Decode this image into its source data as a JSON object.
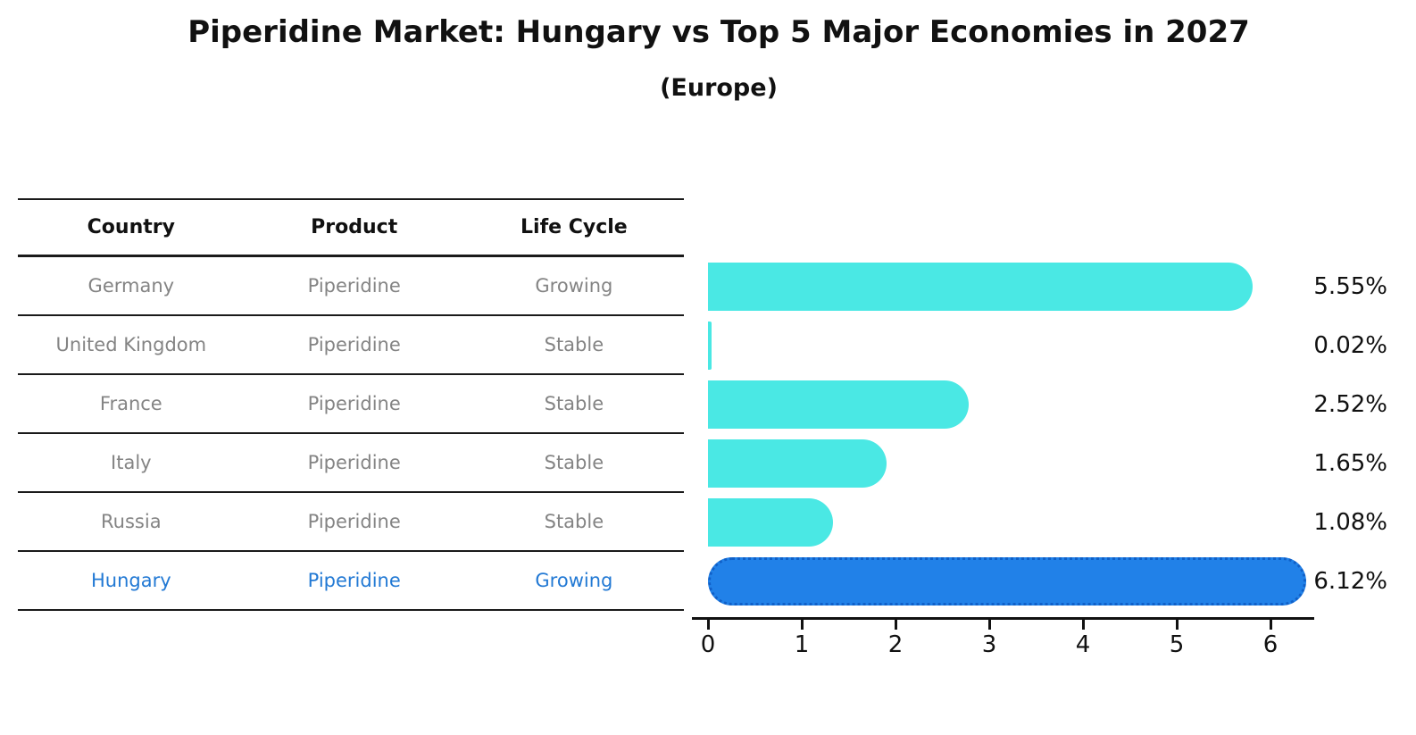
{
  "title": "Piperidine Market: Hungary vs Top 5 Major Economies in 2027",
  "subtitle": "(Europe)",
  "table": {
    "headers": [
      "Country",
      "Product",
      "Life Cycle"
    ],
    "rows": [
      {
        "country": "Germany",
        "product": "Piperidine",
        "life_cycle": "Growing",
        "highlight": false
      },
      {
        "country": "United Kingdom",
        "product": "Piperidine",
        "life_cycle": "Stable",
        "highlight": false
      },
      {
        "country": "France",
        "product": "Piperidine",
        "life_cycle": "Stable",
        "highlight": false
      },
      {
        "country": "Italy",
        "product": "Piperidine",
        "life_cycle": "Stable",
        "highlight": false
      },
      {
        "country": "Russia",
        "product": "Piperidine",
        "life_cycle": "Stable",
        "highlight": false
      },
      {
        "country": "Hungary",
        "product": "Piperidine",
        "life_cycle": "Growing",
        "highlight": true
      }
    ]
  },
  "chart_data": {
    "type": "bar",
    "orientation": "horizontal",
    "title": "Piperidine Market: Hungary vs Top 5 Major Economies in 2027 (Europe)",
    "categories": [
      "Germany",
      "United Kingdom",
      "France",
      "Italy",
      "Russia",
      "Hungary"
    ],
    "values": [
      5.55,
      0.02,
      2.52,
      1.65,
      1.08,
      6.12
    ],
    "value_labels": [
      "5.55%",
      "0.02%",
      "2.52%",
      "1.65%",
      "1.08%",
      "6.12%"
    ],
    "unit": "%",
    "highlight_index": 5,
    "xlim": [
      0,
      6.4
    ],
    "x_ticks": [
      0,
      1,
      2,
      3,
      4,
      5,
      6
    ],
    "grid": false,
    "legend": false,
    "colors": {
      "bar": "#4AE8E4",
      "highlight_bar": "#2181E8",
      "highlight_bar_border": "#1060C8",
      "highlight_text": "#2279d4",
      "text": "#111111",
      "muted_text": "#848484"
    }
  }
}
